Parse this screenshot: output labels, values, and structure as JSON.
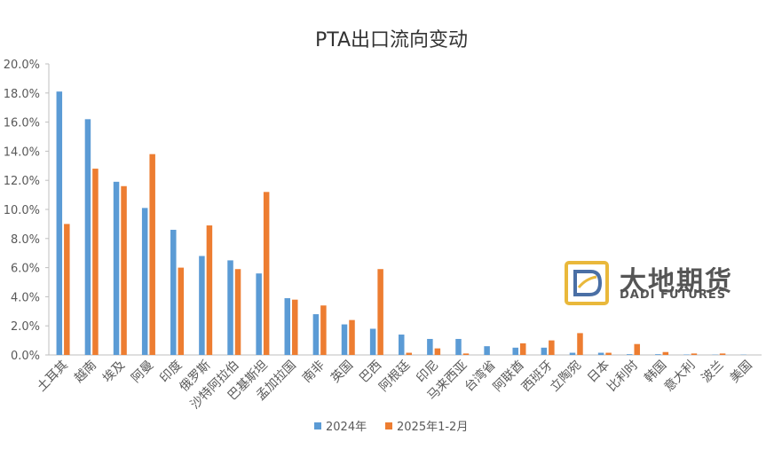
{
  "chart_data": {
    "type": "bar",
    "title": "PTA出口流向变动",
    "categories": [
      "土耳其",
      "越南",
      "埃及",
      "阿曼",
      "印度",
      "俄罗斯",
      "沙特阿拉伯",
      "巴基斯坦",
      "孟加拉国",
      "南非",
      "英国",
      "巴西",
      "阿根廷",
      "印尼",
      "马来西亚",
      "台湾省",
      "阿联酋",
      "西班牙",
      "立陶宛",
      "日本",
      "比利时",
      "韩国",
      "意大利",
      "波兰",
      "美国"
    ],
    "series": [
      {
        "name": "2024年",
        "color": "#5B9BD5",
        "values": [
          18.1,
          16.2,
          11.9,
          10.1,
          8.6,
          6.8,
          6.5,
          5.6,
          3.9,
          2.8,
          2.1,
          1.8,
          1.4,
          1.1,
          1.1,
          0.6,
          0.5,
          0.5,
          0.15,
          0.15,
          0.05,
          0.05,
          0.03,
          0.02,
          0.02
        ]
      },
      {
        "name": "2025年1-2月",
        "color": "#ED7D31",
        "values": [
          9.0,
          12.8,
          11.6,
          13.8,
          6.0,
          8.9,
          5.9,
          11.2,
          3.8,
          3.4,
          2.4,
          5.9,
          0.15,
          0.45,
          0.1,
          0.0,
          0.8,
          1.0,
          1.5,
          0.15,
          0.75,
          0.2,
          0.1,
          0.1,
          0.0
        ]
      }
    ],
    "ylim": [
      0,
      20
    ],
    "yticks": [
      "0.0%",
      "2.0%",
      "4.0%",
      "6.0%",
      "8.0%",
      "10.0%",
      "12.0%",
      "14.0%",
      "16.0%",
      "18.0%",
      "20.0%"
    ],
    "xlabel": "",
    "ylabel": "",
    "legend_position": "bottom",
    "grid": false
  },
  "logo": {
    "brand_cn": "大地期货",
    "brand_en": "DADI FUTURES",
    "colors": {
      "gold": "#E9B83B",
      "blue": "#4A6FA5",
      "text": "#555555"
    }
  }
}
